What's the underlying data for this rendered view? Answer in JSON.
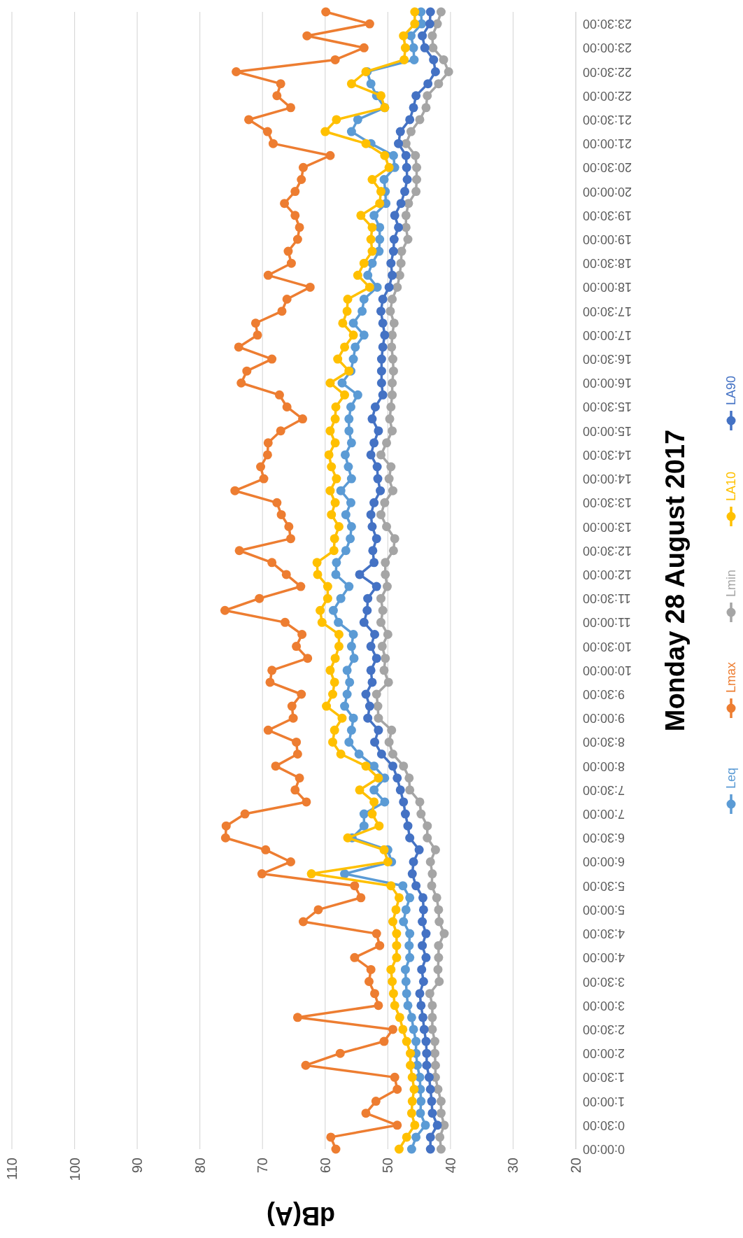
{
  "chart_data": {
    "type": "line",
    "orientation": "horizontal",
    "title": "Monday 28 August 2017",
    "xlabel": "dB(A)",
    "x": [
      0,
      0.25,
      0.5,
      0.75,
      1,
      1.25,
      1.5,
      1.75,
      2,
      2.25,
      2.5,
      2.75,
      3,
      3.25,
      3.5,
      3.75,
      4,
      4.25,
      4.5,
      4.75,
      5,
      5.25,
      5.5,
      5.75,
      6,
      6.25,
      6.5,
      6.75,
      7,
      7.25,
      7.5,
      7.75,
      8,
      8.25,
      8.5,
      8.75,
      9,
      9.25,
      9.5,
      9.75,
      10,
      10.25,
      10.5,
      10.75,
      11,
      11.25,
      11.5,
      11.75,
      12,
      12.25,
      12.5,
      12.75,
      13,
      13.25,
      13.5,
      13.75,
      14,
      14.25,
      14.5,
      14.75,
      15,
      15.25,
      15.5,
      15.75,
      16,
      16.25,
      16.5,
      16.75,
      17,
      17.25,
      17.5,
      17.75,
      18,
      18.25,
      18.5,
      18.75,
      19,
      19.25,
      19.5,
      19.75,
      20,
      20.25,
      20.5,
      20.75,
      21,
      21.25,
      21.5,
      21.75,
      22,
      22.25,
      22.5,
      22.75,
      23,
      23.25,
      23.5,
      23.75
    ],
    "ylim": [
      0,
      23.75
    ],
    "yticks": [
      {
        "value": 0,
        "label": "0:00:00"
      },
      {
        "value": 0.5,
        "label": "0:30:00"
      },
      {
        "value": 1,
        "label": "1:00:00"
      },
      {
        "value": 1.5,
        "label": "1:30:00"
      },
      {
        "value": 2,
        "label": "2:00:00"
      },
      {
        "value": 2.5,
        "label": "2:30:00"
      },
      {
        "value": 3,
        "label": "3:00:00"
      },
      {
        "value": 3.5,
        "label": "3:30:00"
      },
      {
        "value": 4,
        "label": "4:00:00"
      },
      {
        "value": 4.5,
        "label": "4:30:00"
      },
      {
        "value": 5,
        "label": "5:00:00"
      },
      {
        "value": 5.5,
        "label": "5:30:00"
      },
      {
        "value": 6,
        "label": "6:00:00"
      },
      {
        "value": 6.5,
        "label": "6:30:00"
      },
      {
        "value": 7,
        "label": "7:00:00"
      },
      {
        "value": 7.5,
        "label": "7:30:00"
      },
      {
        "value": 8,
        "label": "8:00:00"
      },
      {
        "value": 8.5,
        "label": "8:30:00"
      },
      {
        "value": 9,
        "label": "9:00:00"
      },
      {
        "value": 9.5,
        "label": "9:30:00"
      },
      {
        "value": 10,
        "label": "10:00:00"
      },
      {
        "value": 10.5,
        "label": "10:30:00"
      },
      {
        "value": 11,
        "label": "11:00:00"
      },
      {
        "value": 11.5,
        "label": "11:30:00"
      },
      {
        "value": 12,
        "label": "12:00:00"
      },
      {
        "value": 12.5,
        "label": "12:30:00"
      },
      {
        "value": 13,
        "label": "13:00:00"
      },
      {
        "value": 13.5,
        "label": "13:30:00"
      },
      {
        "value": 14,
        "label": "14:00:00"
      },
      {
        "value": 14.5,
        "label": "14:30:00"
      },
      {
        "value": 15,
        "label": "15:00:00"
      },
      {
        "value": 15.5,
        "label": "15:30:00"
      },
      {
        "value": 16,
        "label": "16:00:00"
      },
      {
        "value": 16.5,
        "label": "16:30:00"
      },
      {
        "value": 17,
        "label": "17:00:00"
      },
      {
        "value": 17.5,
        "label": "17:30:00"
      },
      {
        "value": 18,
        "label": "18:00:00"
      },
      {
        "value": 18.5,
        "label": "18:30:00"
      },
      {
        "value": 19,
        "label": "19:00:00"
      },
      {
        "value": 19.5,
        "label": "19:30:00"
      },
      {
        "value": 20,
        "label": "20:00:00"
      },
      {
        "value": 20.5,
        "label": "20:30:00"
      },
      {
        "value": 21,
        "label": "21:00:00"
      },
      {
        "value": 21.5,
        "label": "21:30:00"
      },
      {
        "value": 22,
        "label": "22:00:00"
      },
      {
        "value": 22.5,
        "label": "22:30:00"
      },
      {
        "value": 23,
        "label": "23:00:00"
      },
      {
        "value": 23.5,
        "label": "23:30:00"
      }
    ],
    "xlim": [
      110,
      20
    ],
    "xticks": [
      110,
      100,
      90,
      80,
      70,
      60,
      50,
      40,
      30,
      20
    ],
    "grid": "x",
    "legend": "bottom",
    "marker": "circle",
    "series": [
      {
        "name": "Leq",
        "color": "#5b9bd5",
        "values": [
          46.2,
          45.5,
          44.0,
          44.8,
          44.7,
          44.8,
          44.9,
          45.3,
          45.5,
          45.5,
          45.9,
          46.2,
          46.8,
          47.0,
          47.1,
          47.2,
          46.5,
          46.6,
          46.5,
          47.5,
          47.1,
          46.5,
          47.6,
          56.9,
          49.4,
          50.0,
          55.7,
          53.8,
          53.8,
          50.5,
          52.2,
          50.5,
          52.2,
          54.6,
          56.2,
          55.8,
          55.5,
          56.9,
          56.5,
          56.1,
          56.5,
          55.4,
          55.8,
          55.5,
          57.9,
          58.7,
          57.5,
          56.2,
          58.3,
          58.2,
          56.7,
          56.0,
          55.8,
          56.7,
          55.9,
          57.5,
          55.8,
          56.3,
          56.8,
          55.8,
          56.2,
          56.2,
          55.9,
          54.8,
          57.3,
          55.9,
          55.5,
          55.2,
          53.8,
          55.5,
          54.1,
          53.8,
          51.7,
          53.2,
          52.5,
          51.4,
          51.3,
          51.3,
          52.2,
          50.3,
          50.4,
          50.6,
          48.9,
          49.1,
          52.7,
          55.8,
          54.8,
          50.5,
          51.8,
          52.7,
          53.3,
          45.8,
          45.9,
          46.3,
          44.6,
          44.7
        ]
      },
      {
        "name": "Lmax",
        "color": "#ed7d31",
        "values": [
          58.3,
          59.1,
          48.5,
          53.5,
          51.9,
          48.5,
          48.9,
          63.1,
          57.6,
          50.6,
          49.2,
          64.4,
          51.5,
          52.1,
          53.0,
          52.7,
          55.3,
          51.3,
          51.8,
          63.5,
          61.1,
          54.3,
          55.3,
          70.1,
          65.5,
          69.5,
          75.9,
          75.8,
          72.8,
          63.0,
          64.8,
          64.1,
          67.9,
          64.4,
          64.6,
          69.1,
          65.1,
          65.3,
          63.8,
          68.8,
          68.5,
          62.8,
          64.6,
          63.7,
          66.4,
          76.0,
          70.5,
          63.9,
          66.2,
          68.5,
          73.7,
          65.5,
          65.8,
          67.0,
          67.7,
          74.4,
          69.8,
          70.3,
          69.2,
          69.1,
          67.1,
          63.6,
          66.1,
          67.3,
          73.4,
          72.5,
          68.5,
          73.8,
          70.8,
          71.1,
          66.9,
          66.1,
          62.4,
          69.1,
          65.4,
          65.9,
          64.4,
          64.1,
          64.8,
          66.5,
          64.8,
          63.8,
          63.5,
          59.2,
          68.3,
          69.2,
          72.2,
          65.5,
          67.7,
          67.1,
          74.2,
          58.4,
          53.8,
          62.9,
          52.9,
          59.9
        ]
      },
      {
        "name": "Lmin",
        "color": "#a5a5a5",
        "values": [
          41.5,
          41.7,
          41.0,
          41.5,
          41.5,
          42.0,
          42.4,
          42.4,
          42.5,
          42.5,
          42.9,
          42.9,
          42.9,
          43.3,
          41.8,
          42.0,
          41.9,
          41.9,
          41.0,
          41.8,
          41.9,
          42.2,
          43.0,
          42.9,
          43.2,
          42.4,
          43.7,
          43.7,
          44.7,
          44.9,
          46.5,
          46.6,
          47.5,
          49.2,
          49.8,
          49.4,
          51.5,
          51.6,
          51.8,
          49.9,
          50.6,
          50.4,
          50.9,
          50.0,
          51.1,
          50.8,
          51.1,
          50.1,
          50.4,
          50.4,
          49.1,
          48.9,
          50.2,
          51.1,
          50.5,
          49.2,
          49.8,
          49.5,
          51.1,
          50.2,
          49.3,
          49.7,
          49.5,
          49.3,
          49.3,
          49.1,
          49.2,
          49.4,
          49.3,
          49.0,
          49.6,
          49.3,
          48.5,
          48.1,
          47.9,
          47.8,
          46.8,
          47.1,
          47.1,
          46.7,
          45.5,
          45.4,
          45.4,
          45.6,
          47.1,
          46.3,
          44.9,
          43.9,
          43.7,
          41.9,
          40.3,
          41.1,
          42.8,
          42.9,
          42.1,
          41.5
        ]
      },
      {
        "name": "LA10",
        "color": "#ffc000",
        "values": [
          48.2,
          47.0,
          45.7,
          46.2,
          46.1,
          45.8,
          46.1,
          46.4,
          46.4,
          47.0,
          47.6,
          48.1,
          48.9,
          49.1,
          49.3,
          49.5,
          48.6,
          48.6,
          48.6,
          49.2,
          48.7,
          48.2,
          49.5,
          62.2,
          50.0,
          50.6,
          56.4,
          51.4,
          52.5,
          52.2,
          54.5,
          51.5,
          53.5,
          57.5,
          58.8,
          58.5,
          57.3,
          59.8,
          58.8,
          58.5,
          59.2,
          58.4,
          57.8,
          57.8,
          60.5,
          60.8,
          59.6,
          59.6,
          61.2,
          61.3,
          58.6,
          58.5,
          57.8,
          59.0,
          58.4,
          59.2,
          58.2,
          59.0,
          59.4,
          58.4,
          59.2,
          58.4,
          58.3,
          56.9,
          59.2,
          56.2,
          58.0,
          56.9,
          55.5,
          57.2,
          56.5,
          56.4,
          52.9,
          54.8,
          53.8,
          52.5,
          52.7,
          52.5,
          54.3,
          51.3,
          51.1,
          52.5,
          49.8,
          50.5,
          53.5,
          60.0,
          58.2,
          50.5,
          51.1,
          55.8,
          53.5,
          47.4,
          47.2,
          47.5,
          45.7,
          45.7
        ]
      },
      {
        "name": "LA90",
        "color": "#4472c4",
        "values": [
          43.2,
          43.2,
          42.1,
          42.9,
          43.0,
          43.2,
          43.4,
          43.8,
          43.8,
          43.9,
          44.2,
          44.4,
          44.7,
          44.9,
          44.3,
          44.6,
          43.9,
          44.5,
          43.9,
          44.5,
          44.3,
          44.4,
          45.5,
          46.1,
          45.9,
          45.0,
          46.5,
          46.8,
          47.2,
          47.5,
          48.0,
          48.5,
          49.2,
          51.0,
          52.1,
          51.5,
          53.2,
          52.9,
          53.5,
          52.5,
          52.7,
          51.8,
          52.7,
          52.1,
          53.8,
          53.3,
          53.2,
          51.8,
          54.5,
          52.2,
          52.4,
          51.8,
          52.5,
          52.7,
          52.2,
          51.2,
          51.6,
          51.7,
          52.7,
          52.2,
          51.5,
          52.5,
          52.0,
          50.8,
          51.0,
          51.0,
          51.0,
          50.8,
          50.5,
          50.8,
          51.1,
          50.8,
          49.8,
          49.3,
          49.5,
          49.1,
          49.0,
          48.3,
          48.9,
          47.9,
          47.3,
          46.9,
          47.0,
          47.1,
          48.3,
          48.0,
          46.5,
          45.9,
          45.5,
          43.6,
          42.4,
          42.7,
          44.1,
          44.5,
          43.3,
          43.2
        ]
      }
    ]
  }
}
